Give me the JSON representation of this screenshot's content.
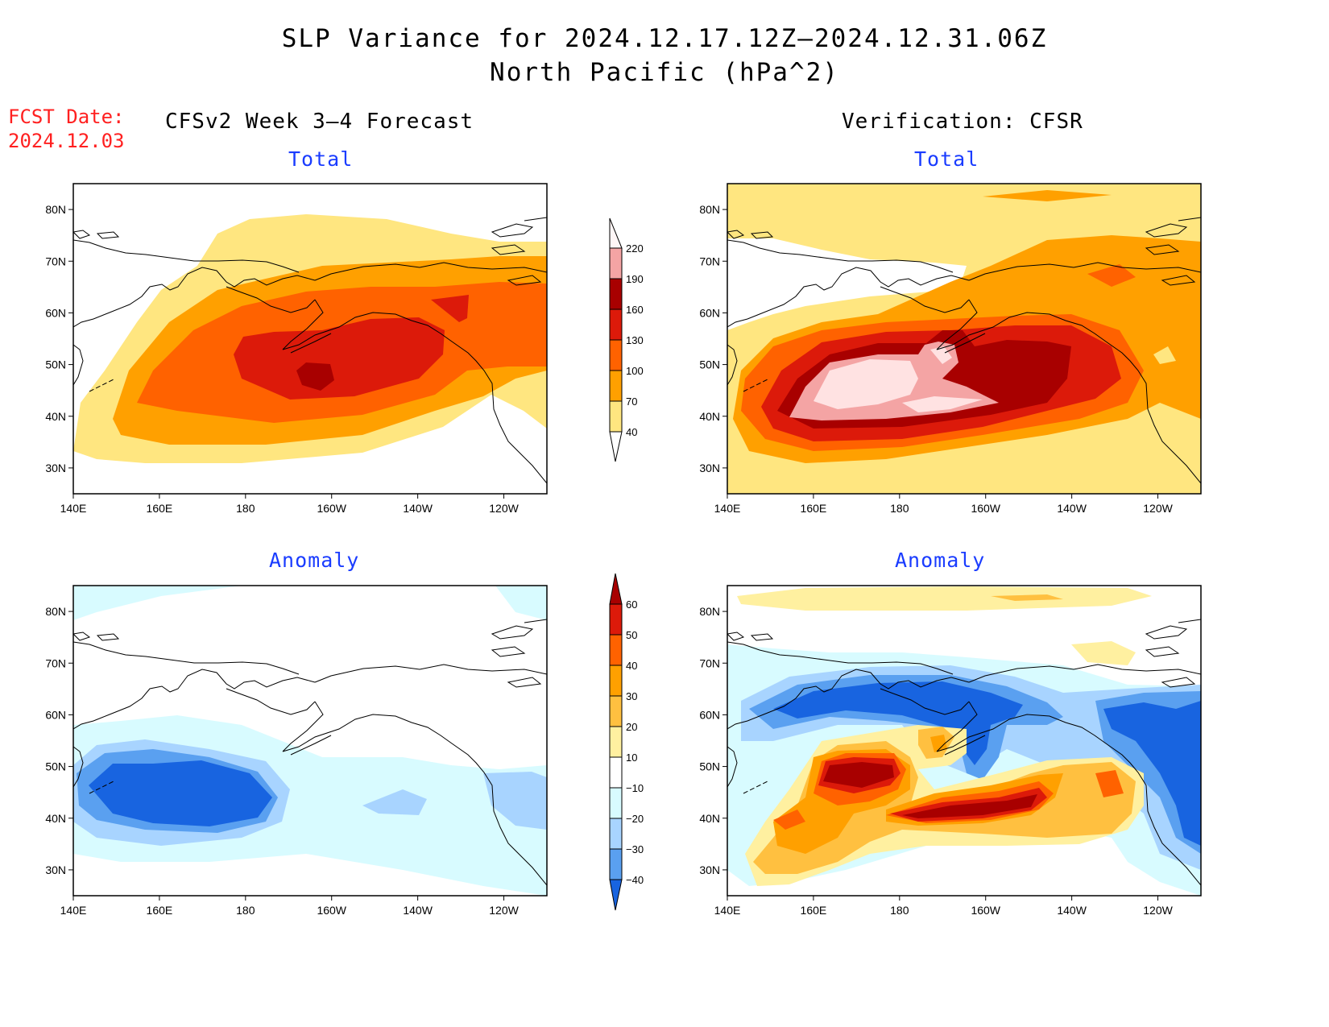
{
  "title": {
    "line1": "SLP Variance for 2024.12.17.12Z–2024.12.31.06Z",
    "line2": "North Pacific (hPa^2)"
  },
  "forecast_date": {
    "label": "FCST Date:",
    "value": "2024.12.03"
  },
  "columns": {
    "left": "CFSv2 Week 3–4 Forecast",
    "right": "Verification: CFSR"
  },
  "panels": {
    "top_left": "Total",
    "top_right": "Total",
    "bottom_left": "Anomaly",
    "bottom_right": "Anomaly"
  },
  "axes": {
    "lat_labels": [
      "80N",
      "70N",
      "60N",
      "50N",
      "40N",
      "30N"
    ],
    "lat_values": [
      80,
      70,
      60,
      50,
      40,
      30
    ],
    "lon_labels": [
      "140E",
      "160E",
      "180",
      "160W",
      "140W",
      "120W"
    ],
    "lon_values": [
      140,
      160,
      180,
      200,
      220,
      240
    ],
    "lon_range": [
      140,
      250
    ],
    "lat_range": [
      25,
      85
    ]
  },
  "total_colorbar": {
    "labels": [
      "220",
      "190",
      "160",
      "130",
      "100",
      "70",
      "40"
    ],
    "colors": [
      "#ffe2e2",
      "#f4a4a4",
      "#a80000",
      "#dc1a0a",
      "#ff6200",
      "#ffa000",
      "#ffe680"
    ]
  },
  "anomaly_colorbar": {
    "labels": [
      "60",
      "50",
      "40",
      "30",
      "20",
      "10",
      "−10",
      "−20",
      "−30",
      "−40"
    ],
    "colors": [
      "#a80000",
      "#dc1a0a",
      "#ff6200",
      "#ffa000",
      "#ffc040",
      "#fff0a0",
      "#ffffff",
      "#d8fbff",
      "#a8d4ff",
      "#5aa0f0",
      "#1864e0",
      "#1050c8"
    ]
  }
}
